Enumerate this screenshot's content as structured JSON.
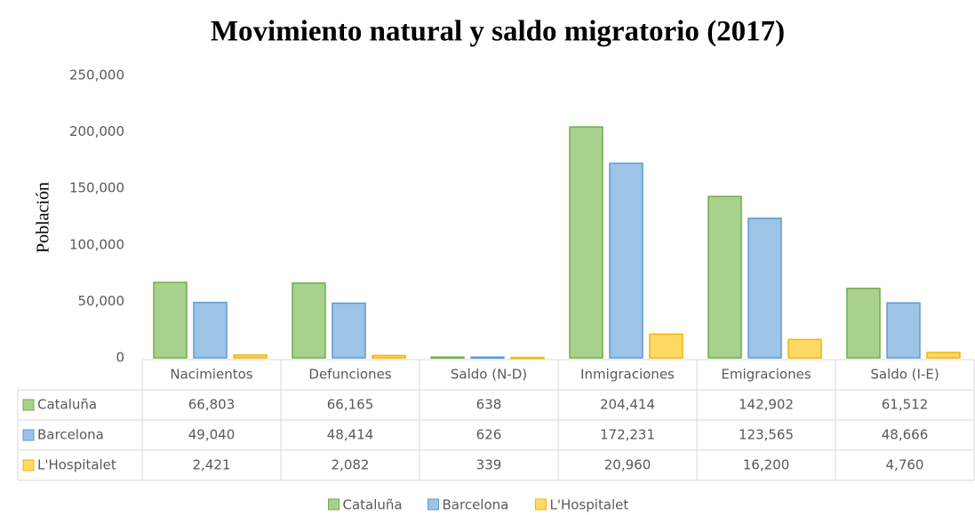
{
  "chart_data": {
    "type": "bar",
    "title": "Movimiento natural y saldo migratorio (2017)",
    "y_label": "Población",
    "categories": [
      "Nacimientos",
      "Defunciones",
      "Saldo (N-D)",
      "Inmigraciones",
      "Emigraciones",
      "Saldo (I-E)"
    ],
    "series": [
      {
        "name": "Cataluña",
        "color": "#a9d18e",
        "stroke": "#70ad47",
        "values": [
          66803,
          66165,
          638,
          204414,
          142902,
          61512
        ],
        "value_labels": [
          "66,803",
          "66,165",
          "638",
          "204,414",
          "142,902",
          "61,512"
        ]
      },
      {
        "name": "Barcelona",
        "color": "#9dc3e6",
        "stroke": "#5b9bd5",
        "values": [
          49040,
          48414,
          626,
          172231,
          123565,
          48666
        ],
        "value_labels": [
          "49,040",
          "48,414",
          "626",
          "172,231",
          "123,565",
          "48,666"
        ]
      },
      {
        "name": "L'Hospitalet",
        "color": "#ffd966",
        "stroke": "#f4b400",
        "values": [
          2421,
          2082,
          339,
          20960,
          16200,
          4760
        ],
        "value_labels": [
          "2,421",
          "2,082",
          "339",
          "20,960",
          "16,200",
          "4,760"
        ]
      }
    ],
    "ylim": [
      0,
      250000
    ],
    "yticks": [
      0,
      {
        "value": 50000,
        "label": "50,000"
      },
      {
        "value": 100000,
        "label": "100,000"
      },
      {
        "value": 150000,
        "label": "150,000"
      },
      {
        "value": 200000,
        "label": "200,000"
      },
      {
        "value": 250000,
        "label": "250,000"
      }
    ],
    "grid": false,
    "legend": "bottom"
  }
}
